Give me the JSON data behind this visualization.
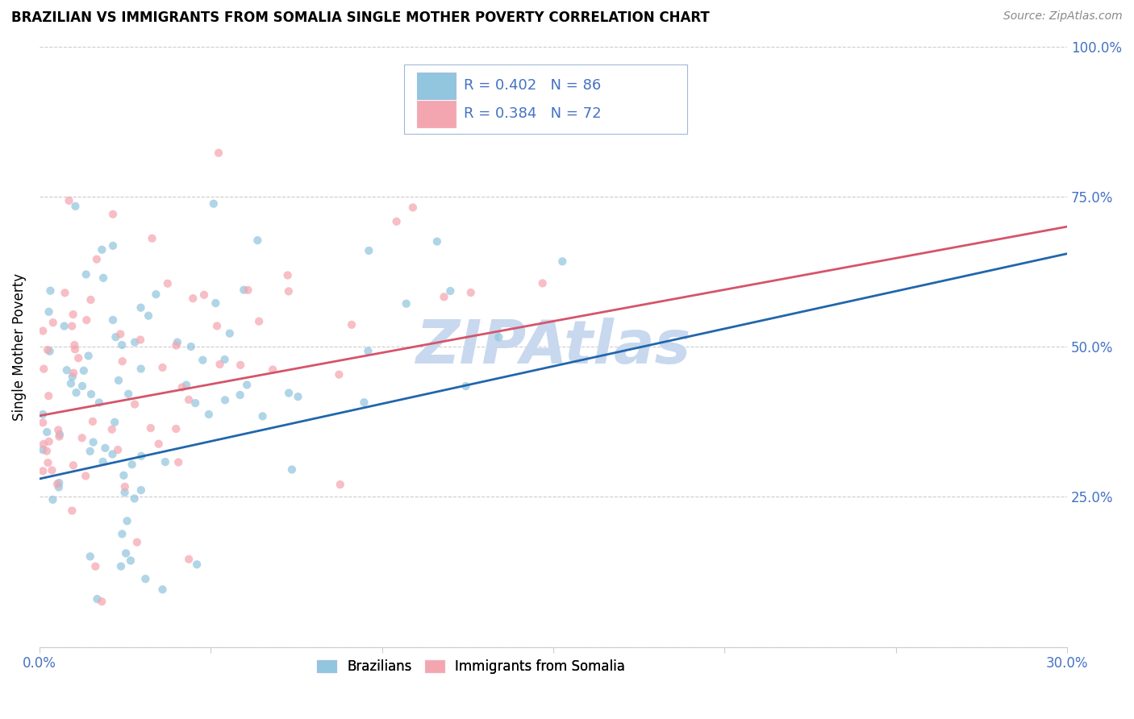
{
  "title": "BRAZILIAN VS IMMIGRANTS FROM SOMALIA SINGLE MOTHER POVERTY CORRELATION CHART",
  "source": "Source: ZipAtlas.com",
  "ylabel": "Single Mother Poverty",
  "xmin": 0.0,
  "xmax": 0.3,
  "ymin": 0.0,
  "ymax": 1.0,
  "blue_color": "#92c5de",
  "blue_line_color": "#2166ac",
  "pink_color": "#f4a6b0",
  "pink_line_color": "#d6546a",
  "text_color": "#4472C4",
  "watermark_color": "#c8d8ee",
  "legend_label_blue_short": "Brazilians",
  "legend_label_pink_short": "Immigrants from Somalia",
  "R_blue": 0.402,
  "N_blue": 86,
  "R_pink": 0.384,
  "N_pink": 72,
  "blue_line_x0": 0.0,
  "blue_line_y0": 0.28,
  "blue_line_x1": 0.3,
  "blue_line_y1": 0.655,
  "pink_line_x0": 0.0,
  "pink_line_y0": 0.385,
  "pink_line_x1": 0.3,
  "pink_line_y1": 0.7
}
